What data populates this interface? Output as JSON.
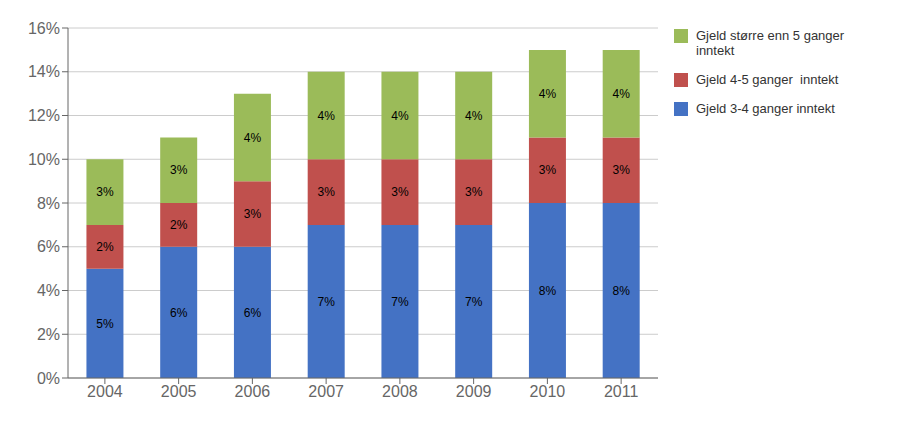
{
  "chart_data": {
    "type": "bar",
    "stacked": true,
    "data_labels": true,
    "grid": true,
    "legend": "right",
    "categories": [
      "2004",
      "2005",
      "2006",
      "2007",
      "2008",
      "2009",
      "2010",
      "2011"
    ],
    "series": [
      {
        "name": "Gjeld 3-4 ganger inntekt",
        "color": "#4472C4",
        "values": [
          5,
          6,
          6,
          7,
          7,
          7,
          8,
          8
        ],
        "value_labels": [
          "5%",
          "6%",
          "6%",
          "7%",
          "7%",
          "7%",
          "8%",
          "8%"
        ]
      },
      {
        "name": "Gjeld 4-5 ganger  inntekt",
        "color": "#C0504D",
        "values": [
          2,
          2,
          3,
          3,
          3,
          3,
          3,
          3
        ],
        "value_labels": [
          "2%",
          "2%",
          "3%",
          "3%",
          "3%",
          "3%",
          "3%",
          "3%"
        ]
      },
      {
        "name": "Gjeld større enn 5 ganger\ninntekt",
        "color": "#9BBB59",
        "values": [
          3,
          3,
          4,
          4,
          4,
          4,
          4,
          4
        ],
        "value_labels": [
          "3%",
          "3%",
          "4%",
          "4%",
          "4%",
          "4%",
          "4%",
          "4%"
        ]
      }
    ],
    "ylim": [
      0,
      16
    ],
    "yticks": [
      {
        "value": 0,
        "label": "0%"
      },
      {
        "value": 2,
        "label": "2%"
      },
      {
        "value": 4,
        "label": "4%"
      },
      {
        "value": 6,
        "label": "6%"
      },
      {
        "value": 8,
        "label": "8%"
      },
      {
        "value": 10,
        "label": "10%"
      },
      {
        "value": 12,
        "label": "12%"
      },
      {
        "value": 14,
        "label": "14%"
      },
      {
        "value": 16,
        "label": "16%"
      }
    ]
  }
}
